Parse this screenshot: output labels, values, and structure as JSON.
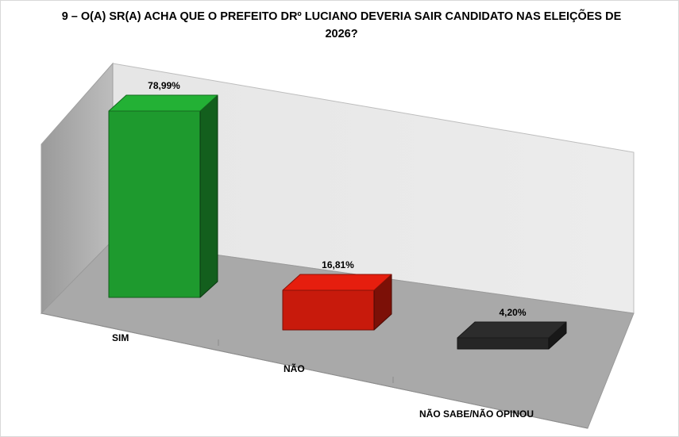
{
  "chart_data": {
    "type": "bar",
    "title": "9 – O(A) SR(A) ACHA QUE O PREFEITO DRº LUCIANO DEVERIA SAIR CANDIDATO NAS ELEIÇÕES DE 2026?",
    "categories": [
      "SIM",
      "NÃO",
      "NÃO SABE/NÃO OPINOU"
    ],
    "values": [
      78.99,
      16.81,
      4.2
    ],
    "value_labels": [
      "78,99%",
      "16,81%",
      "4,20%"
    ],
    "colors": [
      "#1e9a2e",
      "#c81a0c",
      "#262626"
    ],
    "ylim": [
      0,
      100
    ],
    "grid": false,
    "legend": "none",
    "style": "3d-bars"
  }
}
